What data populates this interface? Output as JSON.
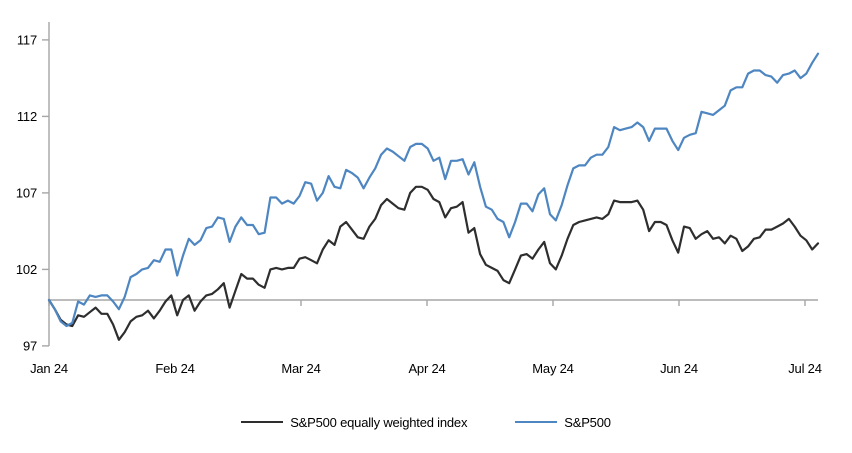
{
  "chart_data": {
    "type": "line",
    "title": "",
    "xlabel": "",
    "ylabel": "",
    "grid": false,
    "legend_position": "bottom",
    "x_axis": {
      "tick_labels": [
        "Jan 24",
        "Feb 24",
        "Mar 24",
        "Apr 24",
        "May 24",
        "Jun 24",
        "Jul 24"
      ],
      "baseline_value": 100
    },
    "y_axis": {
      "ticks": [
        97,
        102,
        107,
        112,
        117
      ],
      "range": [
        97,
        118
      ]
    },
    "dates": [
      "2024-01-01",
      "2024-01-02",
      "2024-01-03",
      "2024-01-04",
      "2024-01-05",
      "2024-01-08",
      "2024-01-09",
      "2024-01-10",
      "2024-01-11",
      "2024-01-12",
      "2024-01-15",
      "2024-01-16",
      "2024-01-17",
      "2024-01-18",
      "2024-01-19",
      "2024-01-22",
      "2024-01-23",
      "2024-01-24",
      "2024-01-25",
      "2024-01-26",
      "2024-01-29",
      "2024-01-30",
      "2024-01-31",
      "2024-02-01",
      "2024-02-02",
      "2024-02-05",
      "2024-02-06",
      "2024-02-07",
      "2024-02-08",
      "2024-02-09",
      "2024-02-12",
      "2024-02-13",
      "2024-02-14",
      "2024-02-15",
      "2024-02-16",
      "2024-02-19",
      "2024-02-20",
      "2024-02-21",
      "2024-02-22",
      "2024-02-23",
      "2024-02-26",
      "2024-02-27",
      "2024-02-28",
      "2024-02-29",
      "2024-03-01",
      "2024-03-04",
      "2024-03-05",
      "2024-03-06",
      "2024-03-07",
      "2024-03-08",
      "2024-03-11",
      "2024-03-12",
      "2024-03-13",
      "2024-03-14",
      "2024-03-15",
      "2024-03-18",
      "2024-03-19",
      "2024-03-20",
      "2024-03-21",
      "2024-03-22",
      "2024-03-25",
      "2024-03-26",
      "2024-03-27",
      "2024-03-28",
      "2024-03-29",
      "2024-04-01",
      "2024-04-02",
      "2024-04-03",
      "2024-04-04",
      "2024-04-05",
      "2024-04-08",
      "2024-04-09",
      "2024-04-10",
      "2024-04-11",
      "2024-04-12",
      "2024-04-15",
      "2024-04-16",
      "2024-04-17",
      "2024-04-18",
      "2024-04-19",
      "2024-04-22",
      "2024-04-23",
      "2024-04-24",
      "2024-04-25",
      "2024-04-26",
      "2024-04-29",
      "2024-04-30",
      "2024-05-01",
      "2024-05-02",
      "2024-05-03",
      "2024-05-06",
      "2024-05-07",
      "2024-05-08",
      "2024-05-09",
      "2024-05-10",
      "2024-05-13",
      "2024-05-14",
      "2024-05-15",
      "2024-05-16",
      "2024-05-17",
      "2024-05-20",
      "2024-05-21",
      "2024-05-22",
      "2024-05-23",
      "2024-05-24",
      "2024-05-27",
      "2024-05-28",
      "2024-05-29",
      "2024-05-30",
      "2024-05-31",
      "2024-06-03",
      "2024-06-04",
      "2024-06-05",
      "2024-06-06",
      "2024-06-07",
      "2024-06-10",
      "2024-06-11",
      "2024-06-12",
      "2024-06-13",
      "2024-06-14",
      "2024-06-17",
      "2024-06-18",
      "2024-06-19",
      "2024-06-20",
      "2024-06-21",
      "2024-06-24",
      "2024-06-25",
      "2024-06-26",
      "2024-06-27",
      "2024-06-28",
      "2024-07-01",
      "2024-07-02",
      "2024-07-03"
    ],
    "series": [
      {
        "name": "S&P500 equally weighted index",
        "color": "#2e2e2e",
        "values": [
          100.0,
          99.4,
          98.7,
          98.4,
          98.3,
          99.0,
          98.9,
          99.2,
          99.5,
          99.1,
          99.1,
          98.4,
          97.4,
          97.9,
          98.6,
          98.9,
          99.0,
          99.3,
          98.8,
          99.3,
          99.9,
          100.3,
          99.0,
          100.0,
          100.3,
          99.3,
          99.9,
          100.3,
          100.4,
          100.7,
          101.1,
          99.5,
          100.6,
          101.7,
          101.4,
          101.4,
          101.0,
          100.8,
          102.0,
          102.1,
          102.0,
          102.1,
          102.1,
          102.7,
          102.8,
          102.6,
          102.4,
          103.3,
          103.9,
          103.6,
          104.8,
          105.1,
          104.6,
          104.1,
          104.0,
          104.8,
          105.3,
          106.2,
          106.6,
          106.3,
          106.0,
          105.9,
          107.0,
          107.4,
          107.4,
          107.2,
          106.6,
          106.4,
          105.4,
          106.0,
          106.1,
          106.4,
          104.4,
          104.7,
          103.0,
          102.3,
          102.1,
          101.9,
          101.3,
          101.1,
          102.0,
          102.9,
          103.0,
          102.7,
          103.3,
          103.8,
          102.4,
          102.0,
          102.9,
          104.0,
          104.9,
          105.1,
          105.2,
          105.3,
          105.4,
          105.3,
          105.6,
          106.5,
          106.4,
          106.4,
          106.4,
          106.5,
          105.9,
          104.5,
          105.1,
          105.1,
          104.9,
          103.9,
          103.1,
          104.8,
          104.7,
          104.0,
          104.3,
          104.5,
          104.0,
          104.1,
          103.7,
          104.2,
          104.0,
          103.2,
          103.5,
          104.0,
          104.1,
          104.6,
          104.6,
          104.8,
          105.0,
          105.3,
          104.8,
          104.2,
          103.9,
          103.3,
          103.7
        ]
      },
      {
        "name": "S&P500",
        "color": "#4e86c1",
        "values": [
          100.0,
          99.4,
          98.6,
          98.3,
          98.5,
          99.9,
          99.7,
          100.3,
          100.2,
          100.3,
          100.3,
          99.9,
          99.4,
          100.2,
          101.5,
          101.7,
          102.0,
          102.1,
          102.6,
          102.5,
          103.3,
          103.3,
          101.6,
          102.9,
          104.0,
          103.6,
          103.9,
          104.7,
          104.8,
          105.4,
          105.3,
          103.8,
          104.8,
          105.4,
          104.9,
          104.9,
          104.3,
          104.4,
          106.7,
          106.7,
          106.3,
          106.5,
          106.3,
          106.8,
          107.7,
          107.6,
          106.5,
          107.0,
          108.1,
          107.4,
          107.3,
          108.5,
          108.3,
          108.0,
          107.3,
          108.0,
          108.6,
          109.5,
          109.9,
          109.7,
          109.4,
          109.1,
          110.0,
          110.2,
          110.2,
          109.9,
          109.1,
          109.3,
          107.9,
          109.1,
          109.1,
          109.2,
          108.2,
          109.0,
          107.4,
          106.1,
          105.9,
          105.3,
          105.1,
          104.1,
          105.1,
          106.3,
          106.3,
          105.8,
          106.9,
          107.3,
          105.6,
          105.2,
          106.2,
          107.5,
          108.6,
          108.8,
          108.8,
          109.3,
          109.5,
          109.5,
          110.0,
          111.3,
          111.1,
          111.2,
          111.3,
          111.6,
          111.3,
          110.4,
          111.2,
          111.2,
          111.2,
          110.4,
          109.8,
          110.6,
          110.8,
          110.9,
          112.3,
          112.2,
          112.1,
          112.4,
          112.7,
          113.7,
          113.9,
          113.9,
          114.8,
          115.0,
          115.0,
          114.7,
          114.6,
          114.2,
          114.7,
          114.8,
          115.0,
          114.5,
          114.8,
          115.5,
          116.1
        ]
      }
    ]
  },
  "colors": {
    "axis": "#a6a6a6",
    "text": "#000000",
    "background": "#ffffff"
  }
}
